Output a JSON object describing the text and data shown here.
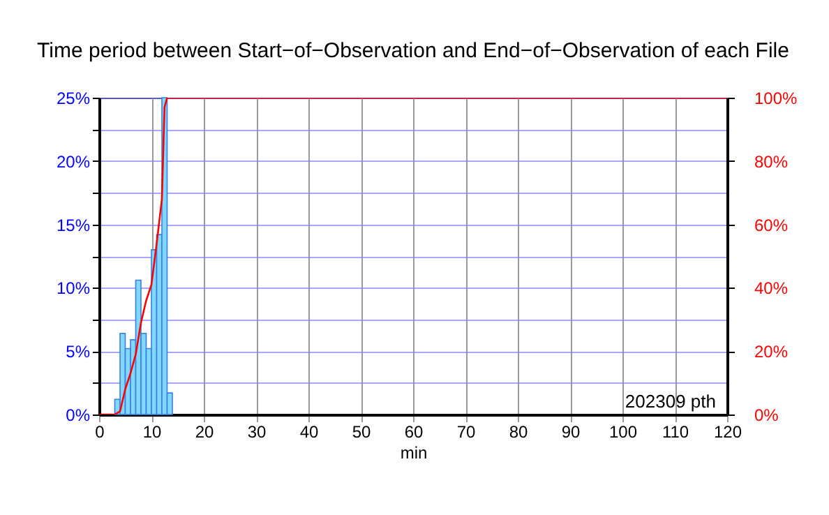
{
  "chart_data": {
    "type": "histogram",
    "title": "Time period between Start−of−Observation and End−of−Observation of each File",
    "xlabel": "min",
    "bins": [
      3,
      4,
      5,
      6,
      7,
      8,
      9,
      10,
      11,
      12,
      13,
      14
    ],
    "series": [
      {
        "color": "#80d8ff",
        "values": [
          1.2,
          6.4,
          5.2,
          5.9,
          10.6,
          6.4,
          5.2,
          13.0,
          14.2,
          25,
          1.7
        ]
      },
      {
        "type": "line",
        "axis": "y2",
        "color": "#ff0000",
        "x": [
          0,
          3,
          4,
          5,
          6,
          7,
          8,
          9,
          10,
          11,
          12,
          12.5,
          13,
          120
        ],
        "values": [
          0,
          0,
          1,
          8,
          13,
          19,
          29,
          36,
          41,
          54,
          68,
          97,
          100,
          100
        ]
      }
    ],
    "xlim": [
      0,
      120
    ],
    "xticks": [
      0,
      10,
      20,
      30,
      40,
      50,
      60,
      70,
      80,
      90,
      100,
      110,
      120
    ],
    "ylim": [
      0,
      25
    ],
    "yticks": [
      {
        "value": 0,
        "label": "0%"
      },
      {
        "value": 2.5,
        "label": null
      },
      {
        "value": 5,
        "label": "5%"
      },
      {
        "value": 7.5,
        "label": null
      },
      {
        "value": 10,
        "label": "10%"
      },
      {
        "value": 12.5,
        "label": null
      },
      {
        "value": 15,
        "label": "15%"
      },
      {
        "value": 17.5,
        "label": null
      },
      {
        "value": 20,
        "label": "20%"
      },
      {
        "value": 22.5,
        "label": null
      },
      {
        "value": 25,
        "label": "25%"
      }
    ],
    "y2lim": [
      0,
      100
    ],
    "y2ticks": [
      {
        "value": 0,
        "label": "0%"
      },
      {
        "value": 20,
        "label": "20%"
      },
      {
        "value": 40,
        "label": "40%"
      },
      {
        "value": 60,
        "label": "60%"
      },
      {
        "value": 80,
        "label": "80%"
      },
      {
        "value": 100,
        "label": "100%"
      }
    ],
    "grid": true,
    "annotations": [
      "202309 pth"
    ]
  }
}
